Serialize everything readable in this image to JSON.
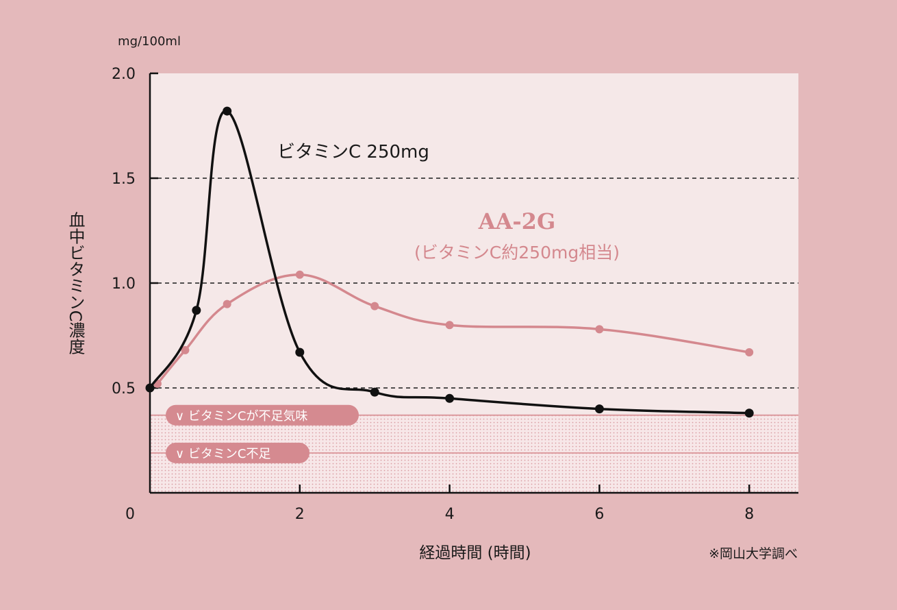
{
  "chart_data": {
    "type": "line",
    "unit_label": "mg/100ml",
    "ylabel": "血中ビタミンC濃度",
    "xlabel": "経過時間 (時間)",
    "source_note": "※岡山大学調べ",
    "xlim": [
      0,
      8.65
    ],
    "ylim": [
      0,
      2.0
    ],
    "x_ticks": [
      0,
      2,
      4,
      6,
      8
    ],
    "x_tick_labels": [
      "0",
      "2",
      "4",
      "6",
      "8"
    ],
    "y_ticks": [
      0.5,
      1.0,
      1.5,
      2.0
    ],
    "y_tick_labels": [
      "0.5",
      "1.0",
      "1.5",
      "2.0"
    ],
    "series": [
      {
        "name": "ビタミンC 250mg",
        "color": "#111111",
        "points": [
          [
            0,
            0.5
          ],
          [
            0.62,
            0.87
          ],
          [
            1.03,
            1.82
          ],
          [
            2.0,
            0.67
          ],
          [
            3.0,
            0.48
          ],
          [
            4.0,
            0.45
          ],
          [
            6.0,
            0.4
          ],
          [
            8.0,
            0.38
          ]
        ]
      },
      {
        "name": "AA-2G",
        "subtitle": "(ビタミンC約250mg相当)",
        "color": "#d4888e",
        "points": [
          [
            0.1,
            0.52
          ],
          [
            0.47,
            0.68
          ],
          [
            1.03,
            0.9
          ],
          [
            2.0,
            1.04
          ],
          [
            3.0,
            0.89
          ],
          [
            4.0,
            0.8
          ],
          [
            6.0,
            0.78
          ],
          [
            8.0,
            0.67
          ]
        ]
      }
    ],
    "bands": [
      {
        "label": "∨ ビタミンCが不足気味",
        "y_top": 0.37,
        "y_bottom": 0.19
      },
      {
        "label": "∨ ビタミンC不足",
        "y_top": 0.19,
        "y_bottom": 0.0
      }
    ]
  },
  "colors": {
    "page_bg": "#e4b9bb",
    "plot_bg": "#f5e8e8",
    "band_line": "#dc9a9e",
    "pill_bg": "#d58a90",
    "pink": "#d4888e"
  }
}
